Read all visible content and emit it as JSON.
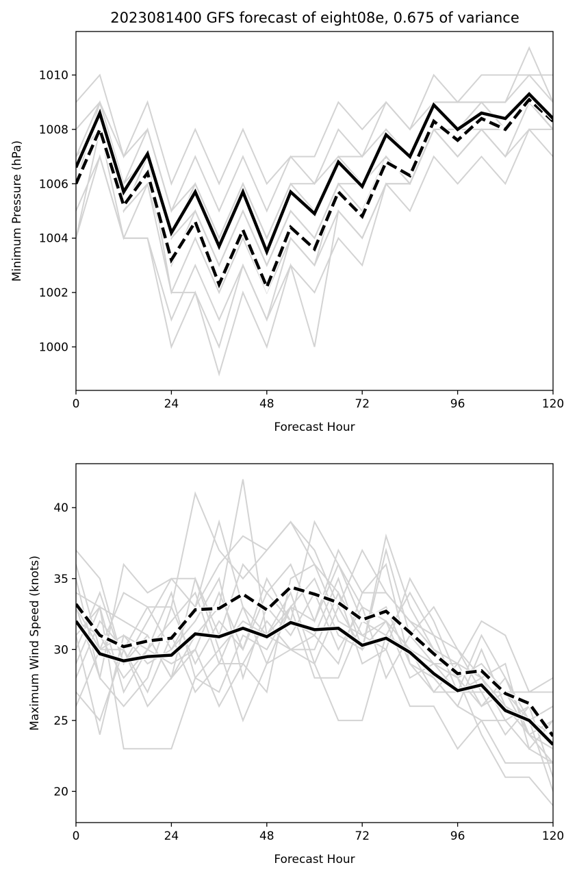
{
  "title": "2023081400 GFS forecast of eight08e, 0.675 of variance",
  "colors": {
    "members": "#d3d3d3",
    "mean": "#000000",
    "fig_bg": "#ffffff"
  },
  "chart_data": [
    {
      "type": "line",
      "xlabel": "Forecast Hour",
      "ylabel": "Minimum Pressure (hPa)",
      "xlim": [
        0,
        120
      ],
      "ylim": [
        998.4,
        1011.6
      ],
      "xticks": [
        0,
        24,
        48,
        72,
        96,
        120
      ],
      "yticks": [
        1000,
        1002,
        1004,
        1006,
        1008,
        1010
      ],
      "grid": false,
      "x": [
        0,
        6,
        12,
        18,
        24,
        30,
        36,
        42,
        48,
        54,
        60,
        66,
        72,
        78,
        84,
        90,
        96,
        102,
        108,
        114,
        120
      ],
      "series": [
        {
          "role": "mean-solid",
          "values": [
            1006.6,
            1008.6,
            1005.7,
            1007.1,
            1004.2,
            1005.7,
            1003.7,
            1005.7,
            1003.5,
            1005.7,
            1004.9,
            1006.8,
            1005.9,
            1007.8,
            1007.0,
            1008.9,
            1008.0,
            1008.6,
            1008.4,
            1009.3,
            1008.4
          ]
        },
        {
          "role": "mean-dashed",
          "values": [
            1006.0,
            1008.0,
            1005.2,
            1006.4,
            1003.2,
            1004.6,
            1002.3,
            1004.3,
            1002.2,
            1004.4,
            1003.6,
            1005.7,
            1004.8,
            1006.8,
            1006.3,
            1008.3,
            1007.6,
            1008.4,
            1008.0,
            1009.1,
            1008.3
          ]
        },
        {
          "role": "member",
          "values": [
            1009,
            1010,
            1007,
            1009,
            1006,
            1008,
            1006,
            1008,
            1006,
            1007,
            1007,
            1009,
            1008,
            1009,
            1008,
            1010,
            1009,
            1010,
            1010,
            1010,
            1010
          ]
        },
        {
          "role": "member",
          "values": [
            1008,
            1009,
            1007,
            1008,
            1005,
            1007,
            1005,
            1007,
            1005,
            1007,
            1006,
            1008,
            1007,
            1009,
            1008,
            1009,
            1009,
            1009,
            1009,
            1011,
            1009
          ]
        },
        {
          "role": "member",
          "values": [
            1007,
            1009,
            1006,
            1008,
            1005,
            1006,
            1004,
            1006,
            1004,
            1006,
            1006,
            1007,
            1007,
            1008,
            1007,
            1009,
            1009,
            1009,
            1009,
            1010,
            1009
          ]
        },
        {
          "role": "member",
          "values": [
            1007,
            1008,
            1006,
            1007,
            1004,
            1006,
            1004,
            1006,
            1004,
            1006,
            1005,
            1007,
            1006,
            1008,
            1007,
            1009,
            1008,
            1009,
            1008,
            1009,
            1008
          ]
        },
        {
          "role": "member",
          "values": [
            1006,
            1008,
            1005,
            1007,
            1004,
            1005,
            1003,
            1005,
            1003,
            1005,
            1004,
            1006,
            1006,
            1007,
            1006,
            1008,
            1008,
            1008,
            1008,
            1009,
            1008
          ]
        },
        {
          "role": "member",
          "values": [
            1006,
            1008,
            1005,
            1006,
            1003,
            1005,
            1003,
            1005,
            1003,
            1005,
            1004,
            1006,
            1005,
            1007,
            1006,
            1008,
            1007,
            1008,
            1008,
            1009,
            1008
          ]
        },
        {
          "role": "member",
          "values": [
            1005,
            1007,
            1004,
            1006,
            1002,
            1004,
            1002,
            1004,
            1002,
            1004,
            1003,
            1005,
            1004,
            1006,
            1006,
            1008,
            1007,
            1008,
            1007,
            1009,
            1008
          ]
        },
        {
          "role": "member",
          "values": [
            1004,
            1007,
            1004,
            1004,
            1001,
            1003,
            1001,
            1003,
            1001,
            1003,
            1002,
            1004,
            1003,
            1006,
            1005,
            1007,
            1006,
            1007,
            1006,
            1008,
            1007
          ]
        },
        {
          "role": "member",
          "values": [
            1004,
            1008,
            1004,
            1004,
            1000,
            1002,
            999,
            1002,
            1000,
            1003,
            1000,
            1005,
            1004,
            1006,
            1006,
            1008,
            1007,
            1008,
            1007,
            1008,
            1008
          ]
        },
        {
          "role": "member",
          "values": [
            1006,
            1009,
            1005,
            1007,
            1002,
            1002,
            1000,
            1003,
            1001,
            1004,
            1003,
            1006,
            1005,
            1007,
            1006,
            1008,
            1008,
            1009,
            1008,
            1009,
            1008
          ]
        }
      ]
    },
    {
      "type": "line",
      "xlabel": "Forecast Hour",
      "ylabel": "Maximum Wind Speed (knots)",
      "xlim": [
        0,
        120
      ],
      "ylim": [
        17.8,
        43.1
      ],
      "xticks": [
        0,
        24,
        48,
        72,
        96,
        120
      ],
      "yticks": [
        20,
        25,
        30,
        35,
        40
      ],
      "grid": false,
      "x": [
        0,
        6,
        12,
        18,
        24,
        30,
        36,
        42,
        48,
        54,
        60,
        66,
        72,
        78,
        84,
        90,
        96,
        102,
        108,
        114,
        120
      ],
      "series": [
        {
          "role": "mean-solid",
          "values": [
            32.0,
            29.7,
            29.2,
            29.5,
            29.6,
            31.1,
            30.9,
            31.5,
            30.9,
            31.9,
            31.4,
            31.5,
            30.3,
            30.8,
            29.8,
            28.3,
            27.1,
            27.5,
            25.7,
            25.0,
            23.3
          ]
        },
        {
          "role": "mean-dashed",
          "values": [
            33.2,
            31.0,
            30.2,
            30.6,
            30.8,
            32.8,
            32.9,
            33.9,
            32.8,
            34.4,
            33.9,
            33.3,
            32.1,
            32.7,
            31.2,
            29.7,
            28.3,
            28.5,
            26.9,
            26.2,
            23.9
          ]
        },
        {
          "role": "member",
          "values": [
            37,
            35,
            29,
            32,
            35,
            35,
            30,
            32,
            31,
            33,
            32,
            36,
            33,
            32,
            28,
            29,
            29,
            28,
            26,
            24,
            22
          ]
        },
        {
          "role": "member",
          "values": [
            36,
            30,
            30,
            33,
            33,
            41,
            37,
            35,
            37,
            39,
            36,
            34,
            31,
            32,
            30,
            28,
            26,
            25,
            22,
            22,
            22
          ]
        },
        {
          "role": "member",
          "values": [
            34,
            33,
            32,
            31,
            28,
            31,
            33,
            42,
            31,
            34,
            29,
            33,
            30,
            37,
            31,
            29,
            27,
            27,
            24,
            26,
            21
          ]
        },
        {
          "role": "member",
          "values": [
            33,
            28,
            36,
            34,
            35,
            33,
            36,
            38,
            37,
            39,
            37,
            33,
            37,
            34,
            32,
            31,
            27,
            28,
            25,
            26,
            24
          ]
        },
        {
          "role": "member",
          "values": [
            32,
            31,
            28,
            30,
            29,
            30,
            34,
            30,
            34,
            32,
            39,
            36,
            32,
            33,
            29,
            28,
            26,
            30,
            26,
            25,
            24
          ]
        },
        {
          "role": "member",
          "values": [
            31,
            24,
            31,
            29,
            30,
            33,
            39,
            33,
            31,
            30,
            31,
            35,
            30,
            32,
            30,
            29,
            28,
            26,
            27,
            25,
            26
          ]
        },
        {
          "role": "member",
          "values": [
            30,
            34,
            29,
            31,
            28,
            35,
            31,
            36,
            34,
            36,
            32,
            37,
            34,
            34,
            32,
            30,
            28,
            29,
            27,
            27,
            28
          ]
        },
        {
          "role": "member",
          "values": [
            29,
            33,
            23,
            23,
            23,
            28,
            27,
            31,
            30,
            33,
            35,
            31,
            30,
            38,
            33,
            30,
            29,
            32,
            31,
            27,
            27
          ]
        },
        {
          "role": "member",
          "values": [
            28,
            32,
            30,
            27,
            31,
            27,
            29,
            29,
            32,
            30,
            29,
            25,
            25,
            31,
            34,
            31,
            30,
            27,
            27,
            24,
            25
          ]
        },
        {
          "role": "member",
          "values": [
            27,
            25,
            30,
            26,
            28,
            30,
            26,
            29,
            27,
            35,
            36,
            32,
            31,
            30,
            35,
            32,
            28,
            24,
            21,
            21,
            19
          ]
        },
        {
          "role": "member",
          "values": [
            26,
            30,
            31,
            30,
            34,
            28,
            30,
            25,
            29,
            30,
            30,
            34,
            29,
            30,
            26,
            26,
            23,
            25,
            25,
            23,
            22
          ]
        },
        {
          "role": "member",
          "values": [
            35,
            28,
            26,
            28,
            33,
            29,
            32,
            30,
            35,
            32,
            31,
            29,
            34,
            36,
            29,
            27,
            27,
            31,
            28,
            24,
            23
          ]
        },
        {
          "role": "member",
          "values": [
            33,
            30,
            34,
            33,
            30,
            32,
            35,
            28,
            33,
            31,
            34,
            30,
            33,
            28,
            31,
            33,
            30,
            28,
            29,
            23,
            25
          ]
        },
        {
          "role": "member",
          "values": [
            31,
            33,
            27,
            30,
            32,
            34,
            29,
            33,
            29,
            33,
            28,
            28,
            32,
            31,
            30,
            27,
            29,
            26,
            28,
            25,
            20
          ]
        }
      ]
    }
  ]
}
